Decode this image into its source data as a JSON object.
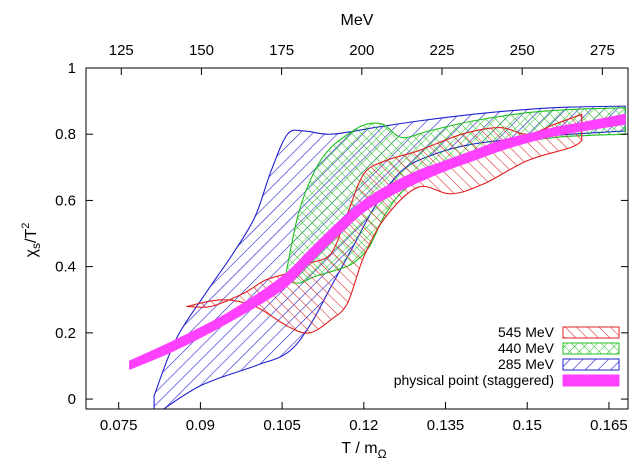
{
  "chart_data": {
    "type": "area",
    "xlabel": "T / m",
    "xlabel_sub": "Ω",
    "ylabel": "χ",
    "ylabel_sub": "s",
    "ylabel_tail": "/T",
    "ylabel_sup": "2",
    "top_axis_label": "MeV",
    "xlim": [
      0.069,
      0.1685
    ],
    "ylim": [
      -0.03,
      1.0
    ],
    "top_xlim": [
      114,
      283
    ],
    "x_ticks": [
      0.075,
      0.09,
      0.105,
      0.12,
      0.135,
      0.15,
      0.165
    ],
    "x_tick_labels": [
      "0.075",
      "0.09",
      "0.105",
      "0.12",
      "0.135",
      "0.15",
      "0.165"
    ],
    "y_ticks": [
      0,
      0.2,
      0.4,
      0.6,
      0.8,
      1
    ],
    "y_tick_labels": [
      "0",
      "0.2",
      "0.4",
      "0.6",
      "0.8",
      "1"
    ],
    "top_ticks": [
      125,
      150,
      175,
      200,
      225,
      250,
      275
    ],
    "top_tick_labels": [
      "125",
      "150",
      "175",
      "200",
      "225",
      "250",
      "275"
    ],
    "grid": false,
    "legend_position": "bottom-right",
    "series": [
      {
        "name": "285 MeV",
        "color": "#2020d0",
        "hatch": "blue-hatch",
        "upper": [
          [
            0.0815,
            0.01
          ],
          [
            0.0855,
            0.18
          ],
          [
            0.091,
            0.32
          ],
          [
            0.096,
            0.44
          ],
          [
            0.1,
            0.55
          ],
          [
            0.103,
            0.69
          ],
          [
            0.106,
            0.8
          ],
          [
            0.109,
            0.81
          ],
          [
            0.114,
            0.8
          ],
          [
            0.122,
            0.82
          ],
          [
            0.13,
            0.84
          ],
          [
            0.14,
            0.86
          ],
          [
            0.15,
            0.875
          ],
          [
            0.158,
            0.882
          ],
          [
            0.168,
            0.885
          ]
        ],
        "lower": [
          [
            0.0815,
            -0.05
          ],
          [
            0.09,
            0.04
          ],
          [
            0.1,
            0.1
          ],
          [
            0.106,
            0.14
          ],
          [
            0.11,
            0.22
          ],
          [
            0.114,
            0.34
          ],
          [
            0.118,
            0.46
          ],
          [
            0.122,
            0.58
          ],
          [
            0.127,
            0.69
          ],
          [
            0.133,
            0.74
          ],
          [
            0.14,
            0.77
          ],
          [
            0.15,
            0.79
          ],
          [
            0.158,
            0.8
          ],
          [
            0.168,
            0.81
          ]
        ]
      },
      {
        "name": "440 MeV",
        "color": "#20c020",
        "hatch": "green-hatch",
        "upper": [
          [
            0.1055,
            0.36
          ],
          [
            0.108,
            0.56
          ],
          [
            0.111,
            0.69
          ],
          [
            0.114,
            0.76
          ],
          [
            0.118,
            0.81
          ],
          [
            0.1205,
            0.83
          ],
          [
            0.1235,
            0.83
          ],
          [
            0.127,
            0.79
          ],
          [
            0.132,
            0.81
          ],
          [
            0.14,
            0.84
          ],
          [
            0.15,
            0.865
          ],
          [
            0.158,
            0.875
          ],
          [
            0.168,
            0.88
          ]
        ],
        "lower": [
          [
            0.1055,
            0.36
          ],
          [
            0.108,
            0.35
          ],
          [
            0.111,
            0.37
          ],
          [
            0.115,
            0.39
          ],
          [
            0.118,
            0.41
          ],
          [
            0.121,
            0.46
          ],
          [
            0.124,
            0.56
          ],
          [
            0.128,
            0.64
          ],
          [
            0.135,
            0.7
          ],
          [
            0.145,
            0.76
          ],
          [
            0.155,
            0.79
          ],
          [
            0.168,
            0.8
          ]
        ]
      },
      {
        "name": "545 MeV",
        "color": "#e02020",
        "hatch": "red-hatch",
        "upper": [
          [
            0.0875,
            0.28
          ],
          [
            0.092,
            0.28
          ],
          [
            0.098,
            0.32
          ],
          [
            0.102,
            0.36
          ],
          [
            0.106,
            0.38
          ],
          [
            0.11,
            0.41
          ],
          [
            0.114,
            0.44
          ],
          [
            0.117,
            0.56
          ],
          [
            0.12,
            0.68
          ],
          [
            0.124,
            0.72
          ],
          [
            0.13,
            0.75
          ],
          [
            0.138,
            0.8
          ],
          [
            0.145,
            0.82
          ],
          [
            0.15,
            0.8
          ],
          [
            0.155,
            0.83
          ],
          [
            0.16,
            0.86
          ]
        ],
        "lower": [
          [
            0.0875,
            0.28
          ],
          [
            0.094,
            0.3
          ],
          [
            0.1,
            0.28
          ],
          [
            0.106,
            0.22
          ],
          [
            0.11,
            0.2
          ],
          [
            0.114,
            0.24
          ],
          [
            0.117,
            0.29
          ],
          [
            0.12,
            0.43
          ],
          [
            0.124,
            0.55
          ],
          [
            0.13,
            0.64
          ],
          [
            0.136,
            0.62
          ],
          [
            0.142,
            0.65
          ],
          [
            0.15,
            0.72
          ],
          [
            0.158,
            0.76
          ],
          [
            0.16,
            0.78
          ]
        ]
      },
      {
        "name": "physical point (staggered)",
        "color": "#ff40ff",
        "hatch": "solid",
        "upper": [
          [
            0.077,
            0.115
          ],
          [
            0.085,
            0.175
          ],
          [
            0.095,
            0.26
          ],
          [
            0.105,
            0.37
          ],
          [
            0.11,
            0.45
          ],
          [
            0.115,
            0.53
          ],
          [
            0.12,
            0.6
          ],
          [
            0.125,
            0.65
          ],
          [
            0.13,
            0.69
          ],
          [
            0.135,
            0.72
          ],
          [
            0.14,
            0.75
          ],
          [
            0.145,
            0.78
          ],
          [
            0.15,
            0.8
          ],
          [
            0.155,
            0.82
          ],
          [
            0.16,
            0.835
          ],
          [
            0.168,
            0.86
          ]
        ],
        "lower": [
          [
            0.077,
            0.09
          ],
          [
            0.085,
            0.145
          ],
          [
            0.095,
            0.23
          ],
          [
            0.105,
            0.33
          ],
          [
            0.11,
            0.41
          ],
          [
            0.115,
            0.49
          ],
          [
            0.12,
            0.565
          ],
          [
            0.125,
            0.615
          ],
          [
            0.13,
            0.655
          ],
          [
            0.135,
            0.69
          ],
          [
            0.14,
            0.72
          ],
          [
            0.145,
            0.75
          ],
          [
            0.15,
            0.775
          ],
          [
            0.155,
            0.795
          ],
          [
            0.16,
            0.81
          ],
          [
            0.168,
            0.83
          ]
        ]
      }
    ],
    "legend_order": [
      2,
      1,
      0,
      3
    ]
  }
}
